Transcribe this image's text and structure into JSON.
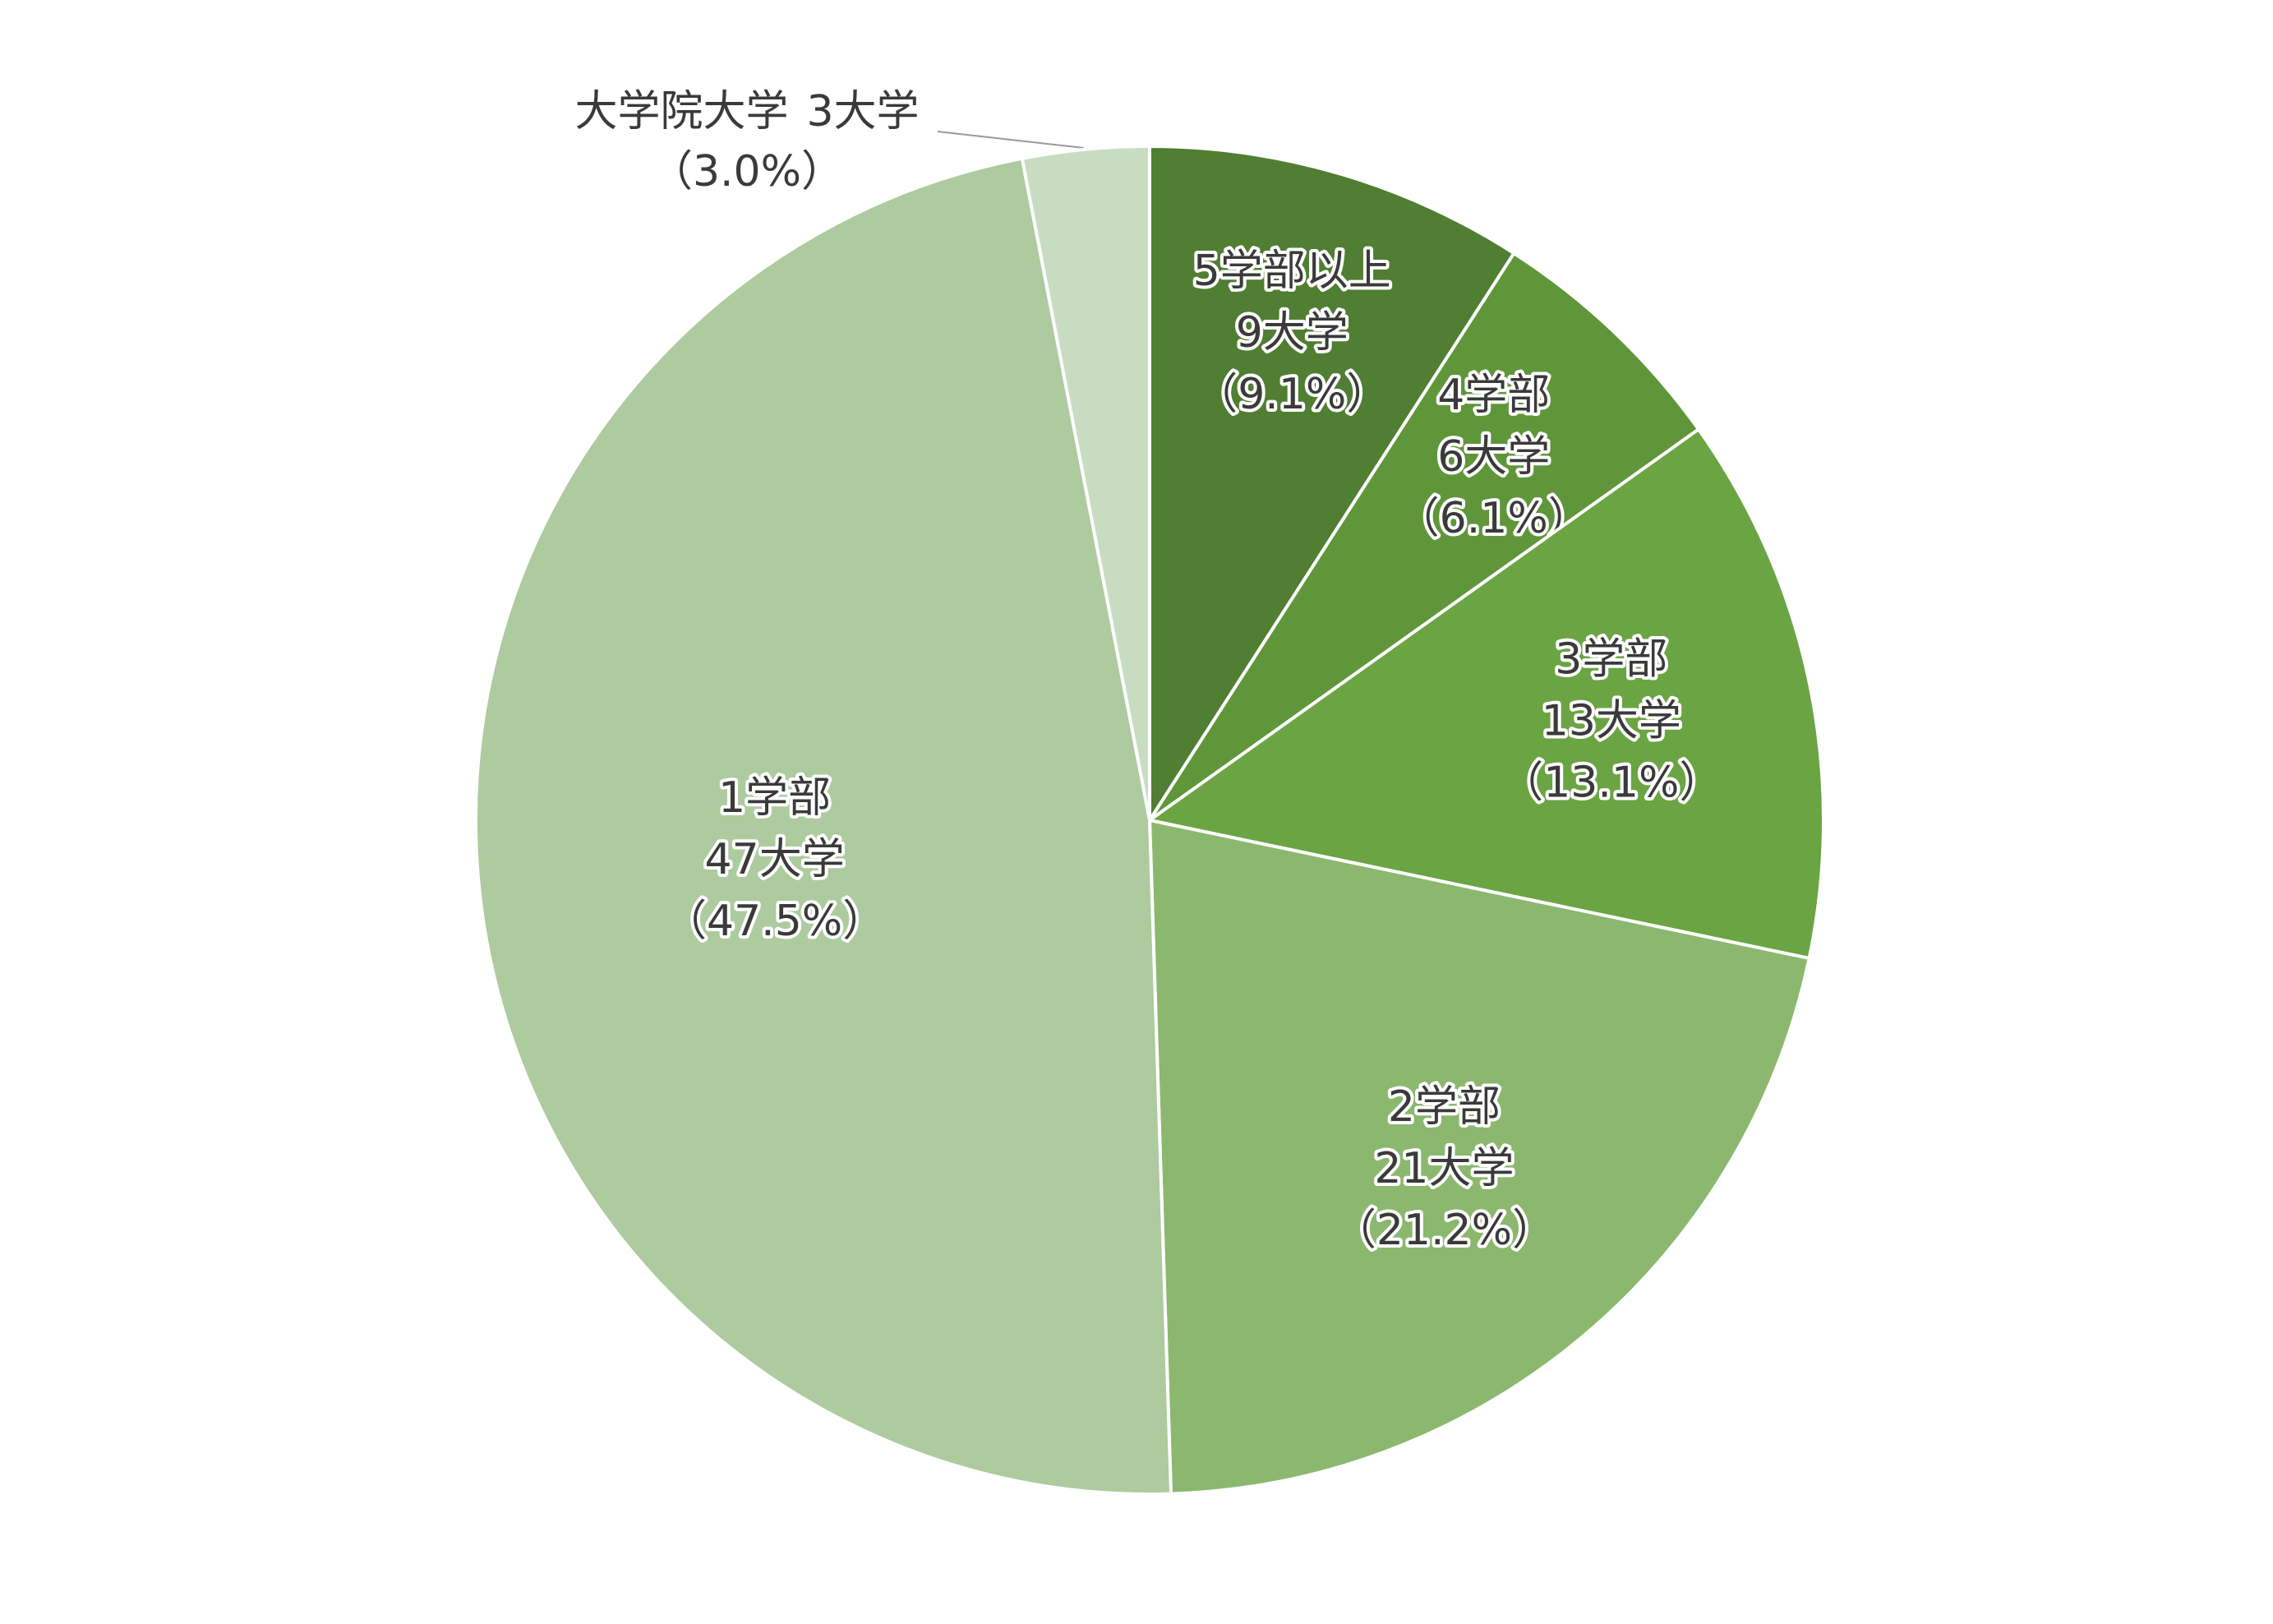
{
  "chart_data": {
    "type": "pie",
    "categories": [
      "5学部以上",
      "4学部",
      "3学部",
      "2学部",
      "1学部",
      "大学院大学"
    ],
    "values": [
      9,
      6,
      13,
      21,
      47,
      3
    ],
    "value_labels": [
      "9大学",
      "6大学",
      "13大学",
      "21大学",
      "47大学",
      "3大学"
    ],
    "percentages": [
      9.1,
      6.1,
      13.1,
      21.2,
      47.5,
      3.0
    ],
    "percentage_labels": [
      "（9.1%）",
      "（6.1%）",
      "（13.1%）",
      "（21.2%）",
      "（47.5%）",
      "（3.0%）"
    ],
    "colors": [
      "#507e32",
      "#5f963a",
      "#6ba443",
      "#8bb86e",
      "#adcb9e",
      "#c8dcc1"
    ]
  }
}
